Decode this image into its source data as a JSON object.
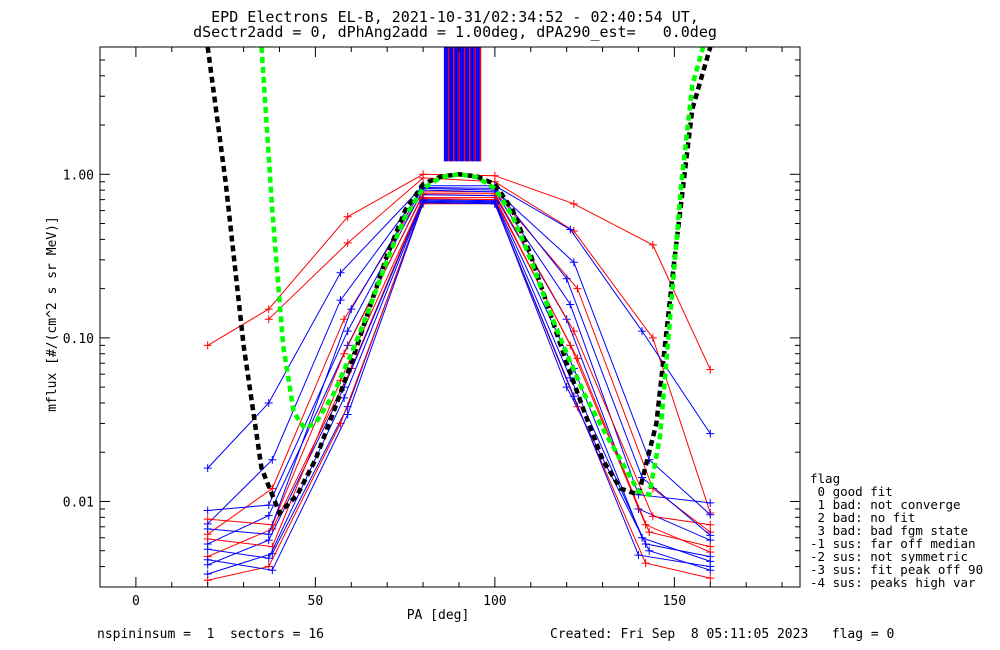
{
  "header": {
    "title_line1": "EPD Electrons EL-B, 2021-10-31/02:34:52 - 02:40:54 UT,",
    "title_line2": "dSectr2add = 0, dPhAng2add = 1.00deg, dPA290_est=   0.0deg"
  },
  "legend": {
    "title": "flag",
    "items": [
      " 0 good fit",
      " 1 bad: not converge",
      " 2 bad: no fit",
      " 3 bad: bad fgm state",
      "-1 sus: far off median",
      "-2 sus: not symmetric",
      "-3 sus: fit peak off 90",
      "-4 sus: peaks high var"
    ]
  },
  "footer": {
    "left": "nspininsum =  1  sectors = 16",
    "right": "Created: Fri Sep  8 05:11:05 2023   flag = 0"
  },
  "colors": {
    "red_series": "#ff0000",
    "blue_series": "#0000ff",
    "fit_black": "#000000",
    "fit_green": "#00ff00"
  },
  "chart_data": {
    "type": "line",
    "title": "EPD Electrons EL-B, 2021-10-31/02:34:52 - 02:40:54 UT,",
    "subtitle": "dSectr2add = 0, dPhAng2add = 1.00deg, dPA290_est=   0.0deg",
    "xlabel": "PA [deg]",
    "ylabel": "mflux [#/(cm^2 s sr MeV)]",
    "xlim": [
      -10,
      185
    ],
    "ylim": [
      0.003,
      6
    ],
    "yscale": "log",
    "xticks": [
      0,
      50,
      100,
      150
    ],
    "yticks": [
      0.01,
      0.1,
      1.0
    ],
    "ytick_labels": [
      "0.01",
      "0.10",
      "1.00"
    ],
    "grid": false,
    "series": [
      {
        "color": "#ff0000",
        "marker": "+",
        "x": [
          20,
          37,
          59,
          80,
          100,
          122,
          144,
          160
        ],
        "y": [
          0.09,
          0.15,
          0.55,
          1.0,
          0.98,
          0.66,
          0.37,
          0.064
        ]
      },
      {
        "color": "#ff0000",
        "marker": "+",
        "x": [
          37,
          59,
          80,
          100,
          122,
          144,
          160
        ],
        "y": [
          0.13,
          0.38,
          0.95,
          0.9,
          0.45,
          0.1,
          0.0085
        ]
      },
      {
        "color": "#0000ff",
        "marker": "+",
        "x": [
          20,
          37,
          57,
          80,
          100,
          121,
          141,
          160
        ],
        "y": [
          0.016,
          0.04,
          0.25,
          0.85,
          0.85,
          0.46,
          0.11,
          0.026
        ]
      },
      {
        "color": "#0000ff",
        "marker": "+",
        "x": [
          20,
          38,
          57,
          80,
          100,
          122,
          143,
          160
        ],
        "y": [
          0.0073,
          0.018,
          0.17,
          0.82,
          0.8,
          0.29,
          0.018,
          0.0083
        ]
      },
      {
        "color": "#ff0000",
        "marker": "+",
        "x": [
          20,
          38,
          58,
          80,
          100,
          123,
          144,
          160
        ],
        "y": [
          0.0063,
          0.012,
          0.13,
          0.78,
          0.78,
          0.2,
          0.012,
          0.0065
        ]
      },
      {
        "color": "#0000ff",
        "marker": "+",
        "x": [
          20,
          37,
          59,
          80,
          100,
          120,
          140,
          160
        ],
        "y": [
          0.0055,
          0.0082,
          0.09,
          0.75,
          0.74,
          0.13,
          0.009,
          0.0058
        ]
      },
      {
        "color": "#ff0000",
        "marker": "+",
        "x": [
          20,
          38,
          60,
          80,
          100,
          121,
          142,
          160
        ],
        "y": [
          0.0046,
          0.0068,
          0.065,
          0.72,
          0.72,
          0.09,
          0.0072,
          0.0049
        ]
      },
      {
        "color": "#0000ff",
        "marker": "+",
        "x": [
          20,
          37,
          58,
          80,
          100,
          122,
          141,
          160
        ],
        "y": [
          0.0041,
          0.0058,
          0.05,
          0.7,
          0.69,
          0.065,
          0.006,
          0.0043
        ]
      },
      {
        "color": "#0000ff",
        "marker": "+",
        "x": [
          20,
          38,
          59,
          80,
          100,
          120,
          143,
          160
        ],
        "y": [
          0.0036,
          0.0048,
          0.038,
          0.68,
          0.67,
          0.05,
          0.005,
          0.0038
        ]
      },
      {
        "color": "#ff0000",
        "marker": "+",
        "x": [
          20,
          37,
          57,
          80,
          100,
          123,
          142,
          160
        ],
        "y": [
          0.0033,
          0.004,
          0.03,
          0.66,
          0.66,
          0.038,
          0.0042,
          0.0034
        ]
      },
      {
        "color": "#0000ff",
        "marker": "+",
        "x": [
          20,
          37,
          59,
          80,
          100,
          121,
          140,
          160
        ],
        "y": [
          0.0088,
          0.0095,
          0.11,
          0.8,
          0.78,
          0.16,
          0.011,
          0.0098
        ]
      },
      {
        "color": "#ff0000",
        "marker": "+",
        "x": [
          20,
          38,
          58,
          80,
          100,
          122,
          144,
          160
        ],
        "y": [
          0.0078,
          0.0072,
          0.08,
          0.76,
          0.76,
          0.11,
          0.0081,
          0.0072
        ]
      },
      {
        "color": "#0000ff",
        "marker": "+",
        "x": [
          20,
          37,
          60,
          80,
          100,
          120,
          141,
          160
        ],
        "y": [
          0.0068,
          0.0063,
          0.15,
          0.83,
          0.82,
          0.23,
          0.014,
          0.0062
        ]
      },
      {
        "color": "#ff0000",
        "marker": "+",
        "x": [
          20,
          38,
          57,
          80,
          100,
          123,
          143,
          160
        ],
        "y": [
          0.0059,
          0.0053,
          0.055,
          0.71,
          0.7,
          0.075,
          0.0065,
          0.0053
        ]
      },
      {
        "color": "#0000ff",
        "marker": "+",
        "x": [
          20,
          37,
          58,
          80,
          100,
          121,
          142,
          160
        ],
        "y": [
          0.0051,
          0.0045,
          0.043,
          0.69,
          0.68,
          0.057,
          0.0055,
          0.0046
        ]
      },
      {
        "color": "#0000ff",
        "marker": "+",
        "x": [
          20,
          38,
          59,
          80,
          100,
          122,
          140,
          160
        ],
        "y": [
          0.0044,
          0.0038,
          0.034,
          0.67,
          0.66,
          0.044,
          0.0047,
          0.004
        ]
      }
    ],
    "fits": [
      {
        "name": "fit-black",
        "color": "#000000",
        "style": "dashed",
        "x": [
          20,
          25,
          30,
          35,
          40,
          45,
          50,
          55,
          60,
          65,
          70,
          75,
          80,
          85,
          90,
          95,
          100,
          105,
          110,
          115,
          120,
          125,
          130,
          135,
          140,
          145,
          150,
          155,
          160
        ],
        "y": [
          6,
          0.9,
          0.09,
          0.016,
          0.0085,
          0.011,
          0.018,
          0.035,
          0.07,
          0.15,
          0.32,
          0.6,
          0.87,
          0.97,
          1.0,
          0.97,
          0.87,
          0.6,
          0.32,
          0.15,
          0.07,
          0.035,
          0.018,
          0.012,
          0.011,
          0.03,
          0.3,
          2.5,
          6
        ]
      },
      {
        "name": "fit-green",
        "color": "#00ff00",
        "style": "dashed",
        "x": [
          35,
          38,
          41,
          44,
          47,
          50,
          55,
          60,
          65,
          70,
          75,
          80,
          85,
          90,
          95,
          100,
          105,
          110,
          115,
          120,
          125,
          130,
          135,
          140,
          143,
          146,
          149,
          152,
          155,
          158
        ],
        "y": [
          6,
          0.6,
          0.09,
          0.035,
          0.028,
          0.03,
          0.045,
          0.08,
          0.15,
          0.3,
          0.55,
          0.82,
          0.96,
          1.0,
          0.96,
          0.82,
          0.55,
          0.3,
          0.15,
          0.08,
          0.045,
          0.028,
          0.018,
          0.0115,
          0.011,
          0.025,
          0.15,
          0.9,
          3.5,
          6
        ]
      }
    ],
    "spikes_near_pa": [
      86,
      96
    ]
  }
}
